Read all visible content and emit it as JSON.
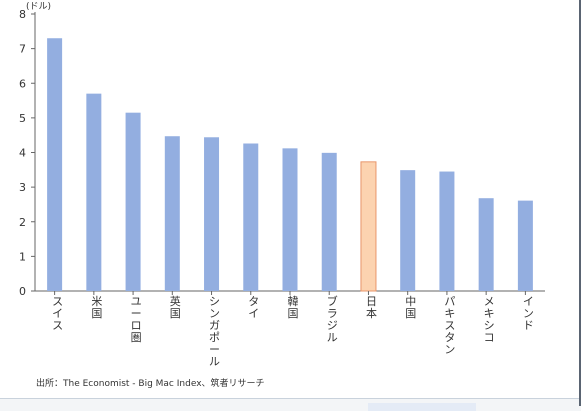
{
  "chart_data": {
    "type": "bar",
    "unit_label": "(ドル)",
    "categories": [
      "スイス",
      "米国",
      "ユーロ圏",
      "英国",
      "シンガポール",
      "タイ",
      "韓国",
      "ブラジル",
      "日本",
      "中国",
      "パキスタン",
      "メキシコ",
      "インド"
    ],
    "values": [
      7.3,
      5.7,
      5.15,
      4.47,
      4.44,
      4.26,
      4.12,
      3.99,
      3.73,
      3.49,
      3.45,
      2.68,
      2.61
    ],
    "highlight_category": "日本",
    "ylim": [
      0,
      8
    ],
    "yticks": [
      0,
      1,
      2,
      3,
      4,
      5,
      6,
      7,
      8
    ],
    "grid": false,
    "legend": "none",
    "colors": {
      "bar_fill": "#93aee0",
      "highlight_fill": "#fcd3b0",
      "highlight_stroke": "#e8956a",
      "axis": "#666666"
    },
    "source": "出所：The Economist - Big Mac Index、筑者リサーチ"
  }
}
